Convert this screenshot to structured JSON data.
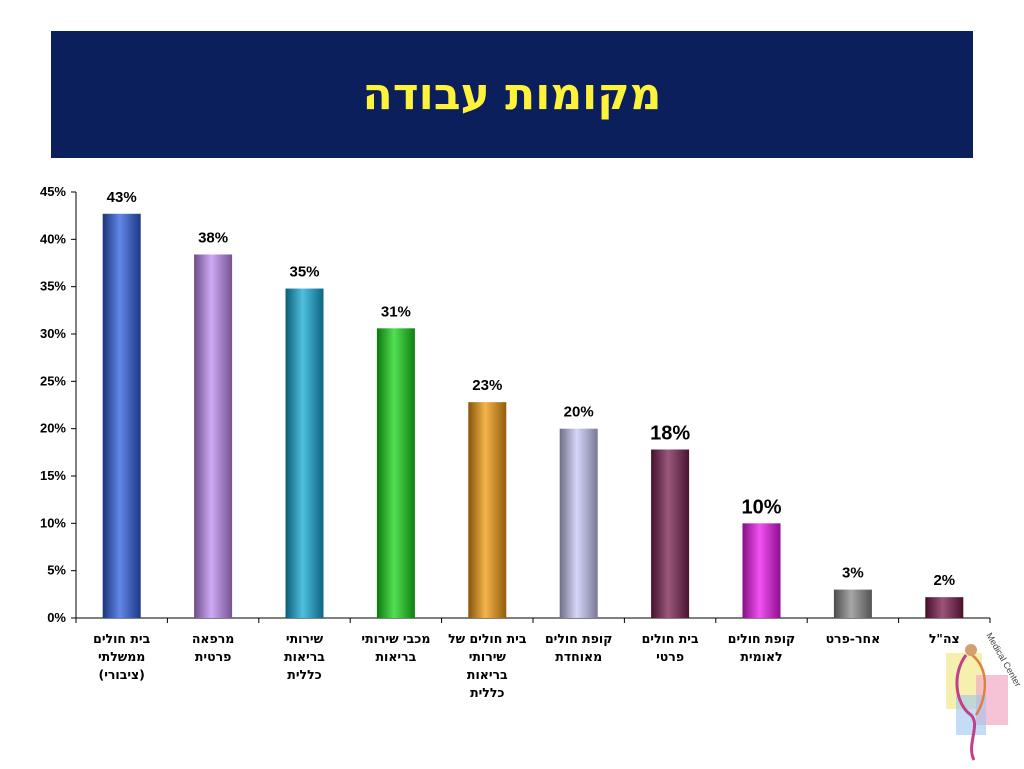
{
  "slide": {
    "title": "מקומות עבודה"
  },
  "chart_data": {
    "type": "bar",
    "categories": [
      "בית חולים\nממשלתי\n(ציבורי)",
      "מרפאה\nפרטית",
      "שירותי\nבריאות\nכללית",
      "מכבי שירותי\nבריאות",
      "בית חולים של\nשירותי\nבריאות\nכללית",
      "קופת חולים\nמאוחדת",
      "בית חולים\nפרטי",
      "קופת חולים\nלאומית",
      "אחר-פרט",
      "צה\"ל"
    ],
    "values": [
      43,
      38,
      35,
      31,
      23,
      20,
      18,
      10,
      3,
      2
    ],
    "data_labels": [
      "43%",
      "38%",
      "35%",
      "31%",
      "23%",
      "20%",
      "18%",
      "10%",
      "3%",
      "2%"
    ],
    "bar_values_exact": [
      42.7,
      38.4,
      34.8,
      30.6,
      22.8,
      20.0,
      17.8,
      10.0,
      3.0,
      2.2
    ],
    "yticks": [
      "0%",
      "5%",
      "10%",
      "15%",
      "20%",
      "25%",
      "30%",
      "35%",
      "40%",
      "45%"
    ],
    "ylim": [
      0,
      45
    ],
    "colors": [
      "#2f5fe0",
      "#c28cf5",
      "#14a9d6",
      "#18d61a",
      "#f29a10",
      "#c8c8f8",
      "#7a2050",
      "#ee18ee",
      "#8a8a8a",
      "#7a1b48"
    ],
    "label_large": [
      false,
      false,
      false,
      false,
      false,
      false,
      true,
      true,
      false,
      false
    ]
  },
  "logo": {
    "text": "Medical Center"
  }
}
